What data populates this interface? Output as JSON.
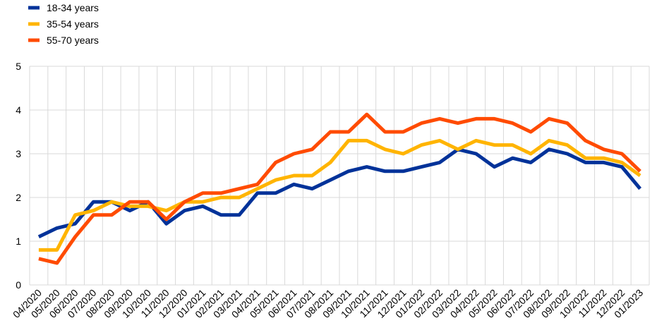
{
  "chart_data": {
    "type": "line",
    "title": "",
    "xlabel": "",
    "ylabel": "",
    "ylim": [
      0,
      5
    ],
    "yticks": [
      0,
      1,
      2,
      3,
      4,
      5
    ],
    "grid": true,
    "legend_position": "top-left",
    "categories": [
      "04/2020",
      "05/2020",
      "06/2020",
      "07/2020",
      "08/2020",
      "09/2020",
      "10/2020",
      "11/2020",
      "12/2020",
      "01/2021",
      "02/2021",
      "03/2021",
      "04/2021",
      "05/2021",
      "06/2021",
      "07/2021",
      "08/2021",
      "09/2021",
      "10/2021",
      "11/2021",
      "12/2021",
      "01/2022",
      "02/2022",
      "03/2022",
      "04/2022",
      "05/2022",
      "06/2022",
      "07/2022",
      "08/2022",
      "09/2022",
      "10/2022",
      "11/2022",
      "12/2022",
      "01/2023"
    ],
    "series": [
      {
        "name": "18-34 years",
        "color": "#003299",
        "values": [
          1.1,
          1.3,
          1.4,
          1.9,
          1.9,
          1.7,
          1.9,
          1.4,
          1.7,
          1.8,
          1.6,
          1.6,
          2.1,
          2.1,
          2.3,
          2.2,
          2.4,
          2.6,
          2.7,
          2.6,
          2.6,
          2.7,
          2.8,
          3.1,
          3.0,
          2.7,
          2.9,
          2.8,
          3.1,
          3.0,
          2.8,
          2.8,
          2.7,
          2.2
        ]
      },
      {
        "name": "35-54 years",
        "color": "#FFB400",
        "values": [
          0.8,
          0.8,
          1.6,
          1.7,
          1.9,
          1.8,
          1.8,
          1.7,
          1.9,
          1.9,
          2.0,
          2.0,
          2.2,
          2.4,
          2.5,
          2.5,
          2.8,
          3.3,
          3.3,
          3.1,
          3.0,
          3.2,
          3.3,
          3.1,
          3.3,
          3.2,
          3.2,
          3.0,
          3.3,
          3.2,
          2.9,
          2.9,
          2.8,
          2.5
        ]
      },
      {
        "name": "55-70 years",
        "color": "#FF4B00",
        "values": [
          0.6,
          0.5,
          1.1,
          1.6,
          1.6,
          1.9,
          1.9,
          1.5,
          1.9,
          2.1,
          2.1,
          2.2,
          2.3,
          2.8,
          3.0,
          3.1,
          3.5,
          3.5,
          3.9,
          3.5,
          3.5,
          3.7,
          3.8,
          3.7,
          3.8,
          3.8,
          3.7,
          3.5,
          3.8,
          3.7,
          3.3,
          3.1,
          3.0,
          2.6
        ]
      }
    ]
  }
}
